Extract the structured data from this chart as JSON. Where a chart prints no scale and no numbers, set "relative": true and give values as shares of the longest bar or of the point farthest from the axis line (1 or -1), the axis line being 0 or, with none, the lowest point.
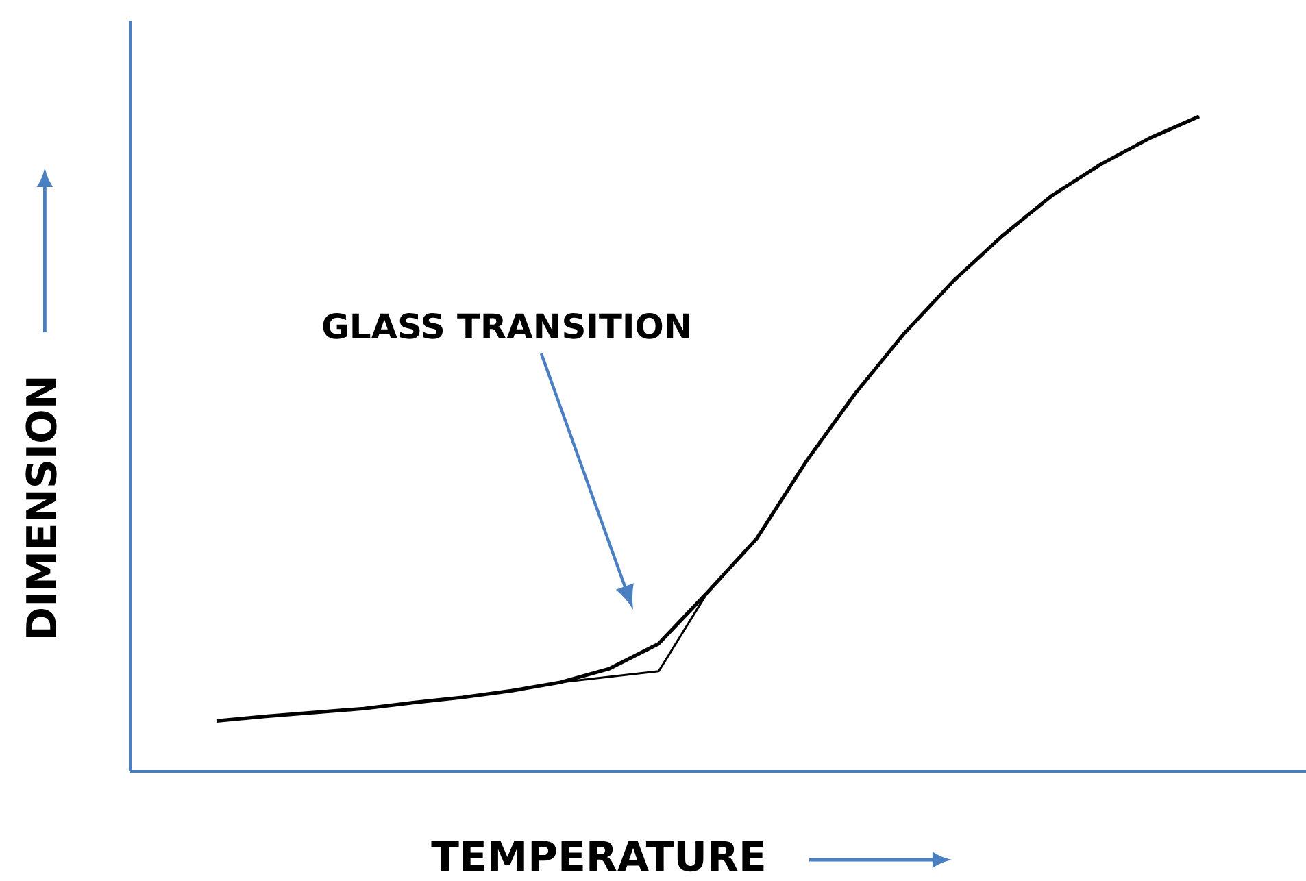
{
  "chart_data": {
    "type": "line",
    "relative": true,
    "xlabel": "TEMPERATURE",
    "ylabel": "DIMENSION",
    "categories": [
      null,
      null,
      null,
      null,
      null,
      null,
      null,
      null,
      null,
      null,
      null,
      null,
      null,
      null,
      null,
      null,
      null,
      null,
      null,
      null,
      null
    ],
    "series": [
      {
        "color": "#000000",
        "values": [
          0.077,
          0.084,
          0.09,
          0.096,
          0.105,
          0.113,
          0.123,
          0.136,
          0.157,
          0.195,
          0.274,
          0.356,
          0.473,
          0.577,
          0.669,
          0.749,
          0.818,
          0.879,
          0.927,
          0.967,
          1
        ]
      },
      {
        "color": "#000000",
        "values": [
          null,
          null,
          null,
          null,
          null,
          null,
          null,
          0.136,
          null,
          0.153,
          0.274,
          null,
          null,
          null,
          null,
          null,
          null,
          null,
          null,
          null,
          null
        ]
      }
    ],
    "annotations": [
      "GLASS TRANSITION"
    ]
  }
}
